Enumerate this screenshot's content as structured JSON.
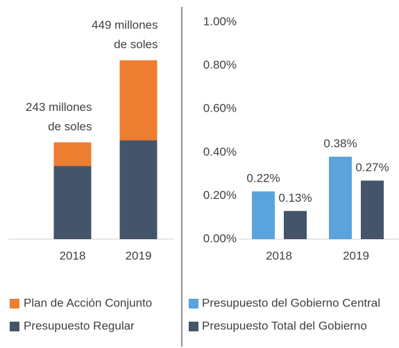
{
  "chart_data": [
    {
      "type": "stacked-bar",
      "categories": [
        "2018",
        "2019"
      ],
      "series": [
        {
          "name": "Presupuesto Regular",
          "color": "#44546a",
          "values": [
            184,
            248
          ]
        },
        {
          "name": "Plan de Acción Conjunto",
          "color": "#ed7d31",
          "values": [
            59,
            201
          ]
        }
      ],
      "annotations": [
        [
          "243 millones",
          "de soles"
        ],
        [
          "449 millones",
          "de soles"
        ]
      ]
    },
    {
      "type": "bar",
      "categories": [
        "2018",
        "2019"
      ],
      "ylim": [
        0,
        1
      ],
      "yticks": [
        {
          "value": 0,
          "label": "0.00%"
        },
        {
          "value": 0.2,
          "label": "0.20%"
        },
        {
          "value": 0.4,
          "label": "0.40%"
        },
        {
          "value": 0.6,
          "label": "0.60%"
        },
        {
          "value": 0.8,
          "label": "0.80%"
        },
        {
          "value": 1,
          "label": "1.00%"
        }
      ],
      "series": [
        {
          "name": "Presupuesto del Gobierno Central",
          "color": "#5ba3dc",
          "values": [
            0.22,
            0.38
          ],
          "value_labels": [
            "0.22%",
            "0.38%"
          ]
        },
        {
          "name": "Presupuesto Total del Gobierno",
          "color": "#44546a",
          "values": [
            0.13,
            0.27
          ],
          "value_labels": [
            "0.13%",
            "0.27%"
          ]
        }
      ]
    }
  ]
}
